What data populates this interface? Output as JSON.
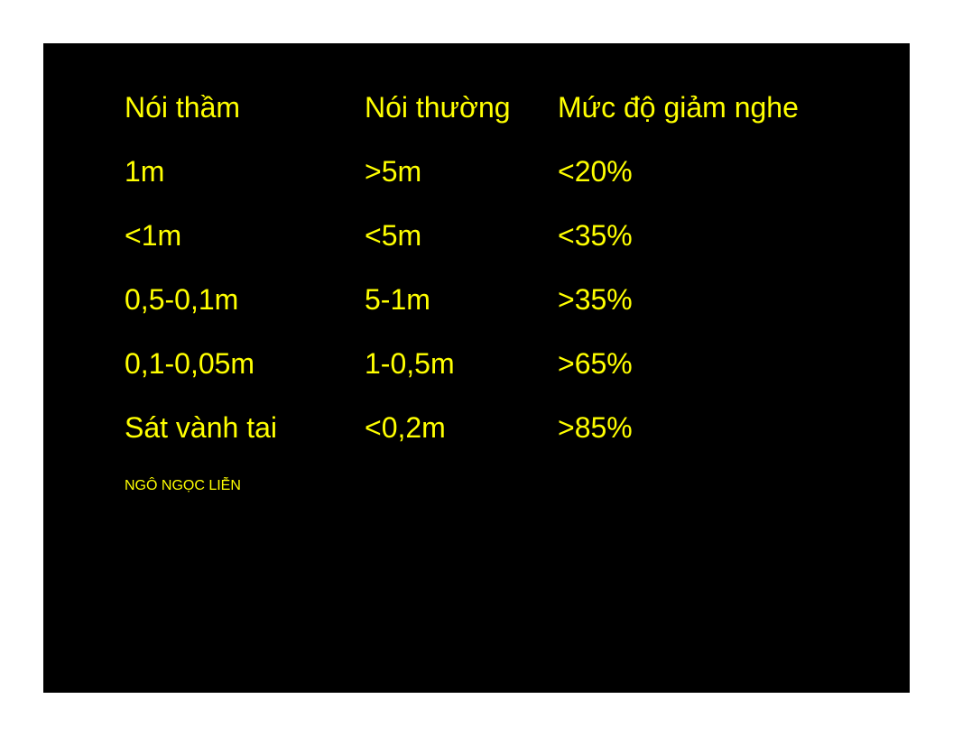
{
  "table": {
    "headers": [
      "Nói thầm",
      "Nói thường",
      "Mức độ giảm nghe"
    ],
    "rows": [
      [
        "1m",
        ">5m",
        "<20%"
      ],
      [
        "<1m",
        "<5m",
        "<35%"
      ],
      [
        "0,5-0,1m",
        "5-1m",
        ">35%"
      ],
      [
        "0,1-0,05m",
        "1-0,5m",
        ">65%"
      ],
      [
        "Sát vành tai",
        "<0,2m",
        ">85%"
      ]
    ]
  },
  "author": "NGÔ NGỌC LIỄN",
  "colors": {
    "text": "#ffff00",
    "background": "#000000",
    "page": "#ffffff"
  }
}
